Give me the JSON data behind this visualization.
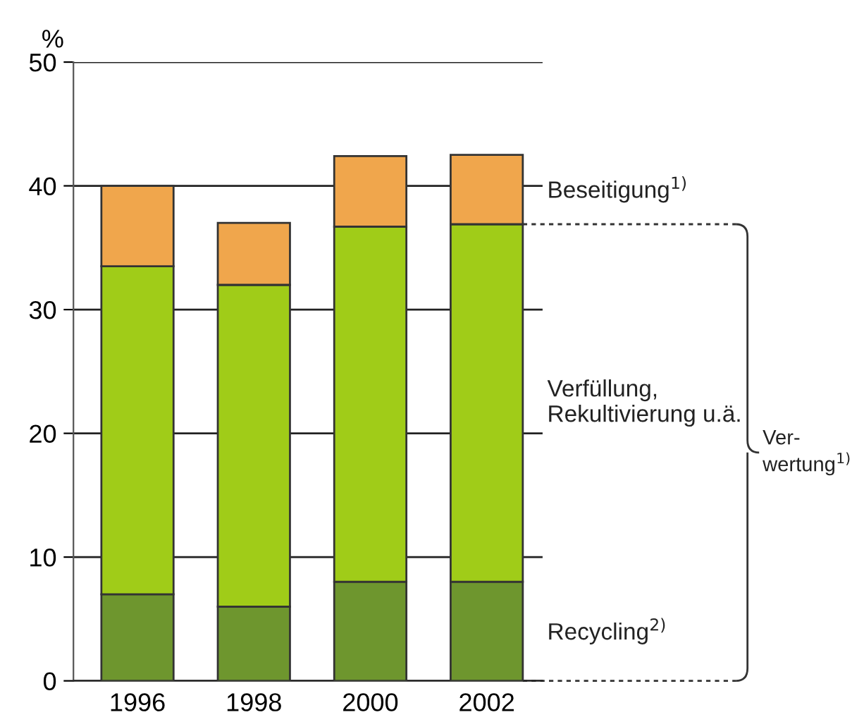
{
  "chart_data": {
    "type": "bar",
    "stacked": true,
    "ylabel": "%",
    "categories": [
      "1996",
      "1998",
      "2000",
      "2002"
    ],
    "series": [
      {
        "name": "Recycling$^{2)}$",
        "color": "#6e962e",
        "values": [
          7,
          6,
          8,
          8
        ]
      },
      {
        "name": "Verfüllung,\nRekultivierung u.ä.",
        "color": "#a0cc18",
        "values": [
          26.5,
          26,
          28.7,
          28.9
        ]
      },
      {
        "name": "Beseitigung$^{1)}$",
        "color": "#f0a64c",
        "values": [
          6.5,
          5,
          5.7,
          5.6
        ]
      }
    ],
    "annotations": [
      "Ver-\nwertung$^{1)}$"
    ],
    "ylim": [
      0,
      50
    ],
    "yticks": [
      0,
      10,
      20,
      30,
      40,
      50
    ],
    "grid": "y",
    "legend": false
  }
}
